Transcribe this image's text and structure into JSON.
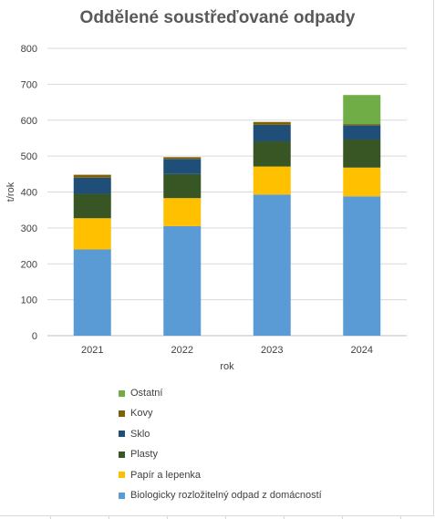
{
  "chart_data": {
    "type": "bar",
    "stacked": true,
    "title": "Oddělené soustřeďované odpady",
    "xlabel": "rok",
    "ylabel": "t/rok",
    "ylim": [
      0,
      800
    ],
    "yticks": [
      0,
      100,
      200,
      300,
      400,
      500,
      600,
      700,
      800
    ],
    "grid": true,
    "legend_position": "bottom",
    "categories": [
      "2021",
      "2022",
      "2023",
      "2024"
    ],
    "series": [
      {
        "name": "Biologicky rozložitelný odpad z domácností",
        "color": "#5b9bd5",
        "values": [
          240,
          305,
          393,
          388
        ]
      },
      {
        "name": "Papír a lepenka",
        "color": "#ffc000",
        "values": [
          87,
          78,
          78,
          80
        ]
      },
      {
        "name": "Plasty",
        "color": "#375623",
        "values": [
          68,
          67,
          70,
          78
        ]
      },
      {
        "name": "Sklo",
        "color": "#1f4e79",
        "values": [
          45,
          42,
          46,
          40
        ]
      },
      {
        "name": "Kovy",
        "color": "#806000",
        "values": [
          8,
          5,
          8,
          3
        ]
      },
      {
        "name": "Ostatní",
        "color": "#70ad47",
        "values": [
          0,
          0,
          0,
          81
        ]
      }
    ]
  }
}
